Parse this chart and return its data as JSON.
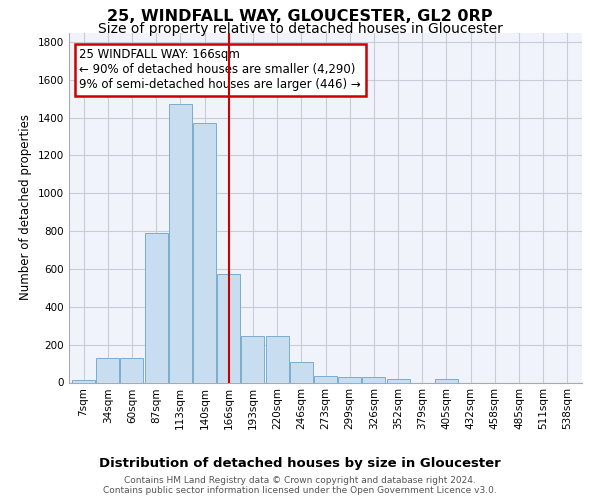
{
  "title": "25, WINDFALL WAY, GLOUCESTER, GL2 0RP",
  "subtitle": "Size of property relative to detached houses in Gloucester",
  "xlabel": "Distribution of detached houses by size in Gloucester",
  "ylabel": "Number of detached properties",
  "footer_line1": "Contains HM Land Registry data © Crown copyright and database right 2024.",
  "footer_line2": "Contains public sector information licensed under the Open Government Licence v3.0.",
  "categories": [
    "7sqm",
    "34sqm",
    "60sqm",
    "87sqm",
    "113sqm",
    "140sqm",
    "166sqm",
    "193sqm",
    "220sqm",
    "246sqm",
    "273sqm",
    "299sqm",
    "326sqm",
    "352sqm",
    "379sqm",
    "405sqm",
    "432sqm",
    "458sqm",
    "485sqm",
    "511sqm",
    "538sqm"
  ],
  "values": [
    15,
    130,
    130,
    790,
    1470,
    1370,
    575,
    245,
    245,
    110,
    35,
    30,
    30,
    20,
    0,
    20,
    0,
    0,
    0,
    0,
    0
  ],
  "vline_x_index": 6,
  "bar_color": "#c8ddf0",
  "bar_edge_color": "#7aadcf",
  "vline_color": "#cc0000",
  "annotation_line1": "25 WINDFALL WAY: 166sqm",
  "annotation_line2": "← 90% of detached houses are smaller (4,290)",
  "annotation_line3": "9% of semi-detached houses are larger (446) →",
  "annotation_box_color": "#cc0000",
  "ylim": [
    0,
    1850
  ],
  "yticks": [
    0,
    200,
    400,
    600,
    800,
    1000,
    1200,
    1400,
    1600,
    1800
  ],
  "bg_color": "#f0f4fa",
  "grid_color": "#c8ccd8",
  "title_fontsize": 11.5,
  "subtitle_fontsize": 10,
  "xlabel_fontsize": 9.5,
  "ylabel_fontsize": 8.5,
  "tick_fontsize": 7.5,
  "footer_fontsize": 6.5,
  "annotation_fontsize": 8.5
}
